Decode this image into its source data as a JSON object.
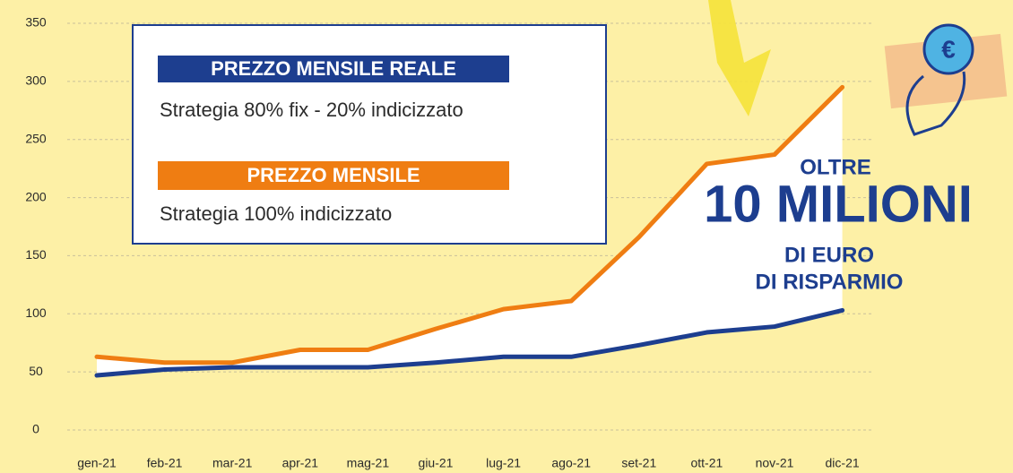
{
  "chart_data": {
    "type": "line",
    "categories": [
      "gen-21",
      "feb-21",
      "mar-21",
      "apr-21",
      "mag-21",
      "giu-21",
      "lug-21",
      "ago-21",
      "set-21",
      "ott-21",
      "nov-21",
      "dic-21"
    ],
    "series": [
      {
        "name": "PREZZO MENSILE REALE",
        "description": "Strategia 80% fix - 20% indicizzato",
        "color": "#1d3e8f",
        "values": [
          47,
          52,
          54,
          54,
          54,
          58,
          63,
          63,
          73,
          84,
          89,
          103
        ]
      },
      {
        "name": "PREZZO MENSILE",
        "description": "Strategia 100% indicizzato",
        "color": "#ef7d12",
        "values": [
          63,
          58,
          58,
          69,
          69,
          87,
          104,
          111,
          166,
          229,
          237,
          295
        ]
      }
    ],
    "ylim": [
      0,
      350
    ],
    "yticks": [
      0,
      50,
      100,
      150,
      200,
      250,
      300,
      350
    ],
    "grid": true,
    "annotation": [
      "OLTRE",
      "10 MILIONI",
      "DI EURO",
      "DI RISPARMIO"
    ]
  }
}
